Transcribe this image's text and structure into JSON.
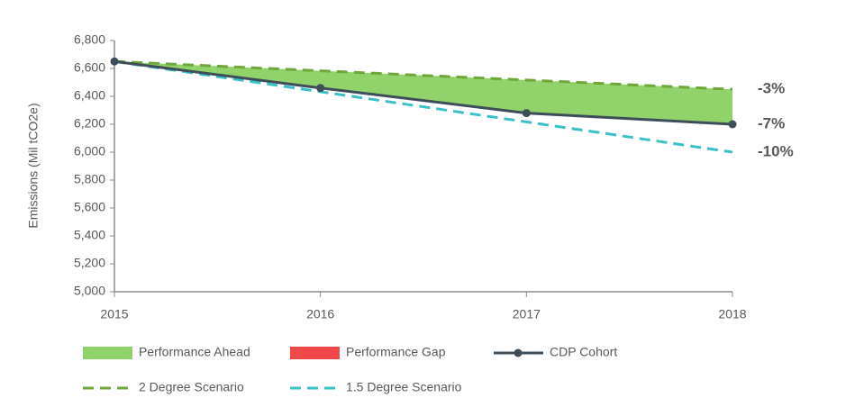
{
  "chart_data": {
    "type": "line",
    "y_axis_label": "Emissions (Mil tCO2e)",
    "x": [
      2015,
      2016,
      2017,
      2018
    ],
    "xlim": [
      2015,
      2018
    ],
    "xticks": [
      2015,
      2016,
      2017,
      2018
    ],
    "ylim": [
      5000,
      6800
    ],
    "yticks": [
      {
        "value": 5000,
        "label": "5,000"
      },
      {
        "value": 5200,
        "label": "5,200"
      },
      {
        "value": 5400,
        "label": "5,400"
      },
      {
        "value": 5600,
        "label": "5,600"
      },
      {
        "value": 5800,
        "label": "5,800"
      },
      {
        "value": 6000,
        "label": "6,000"
      },
      {
        "value": 6200,
        "label": "6,200"
      },
      {
        "value": 6400,
        "label": "6,400"
      },
      {
        "value": 6600,
        "label": "6,600"
      },
      {
        "value": 6800,
        "label": "6,800"
      }
    ],
    "areas": [
      {
        "name": "Performance Ahead",
        "color": "#92d26a"
      },
      {
        "name": "Performance Gap",
        "color": "#f04848"
      }
    ],
    "series": [
      {
        "name": "CDP Cohort",
        "color": "#3d4d5a",
        "values": [
          6650,
          6460,
          6280,
          6200
        ],
        "markers": true,
        "dashed": false,
        "end_label": "-7%",
        "end_label_color": "#3d4d5a"
      },
      {
        "name": "2 Degree Scenario",
        "color": "#6fa83a",
        "values": [
          6650,
          6583,
          6517,
          6450
        ],
        "markers": false,
        "dashed": true,
        "end_label": "-3%",
        "end_label_color": "#7c9a34"
      },
      {
        "name": "1.5 Degree Scenario",
        "color": "#3cc0c8",
        "values": [
          6650,
          6433,
          6217,
          6000
        ],
        "markers": false,
        "dashed": true,
        "end_label": "-10%",
        "end_label_color": "#3aaab3"
      }
    ]
  }
}
